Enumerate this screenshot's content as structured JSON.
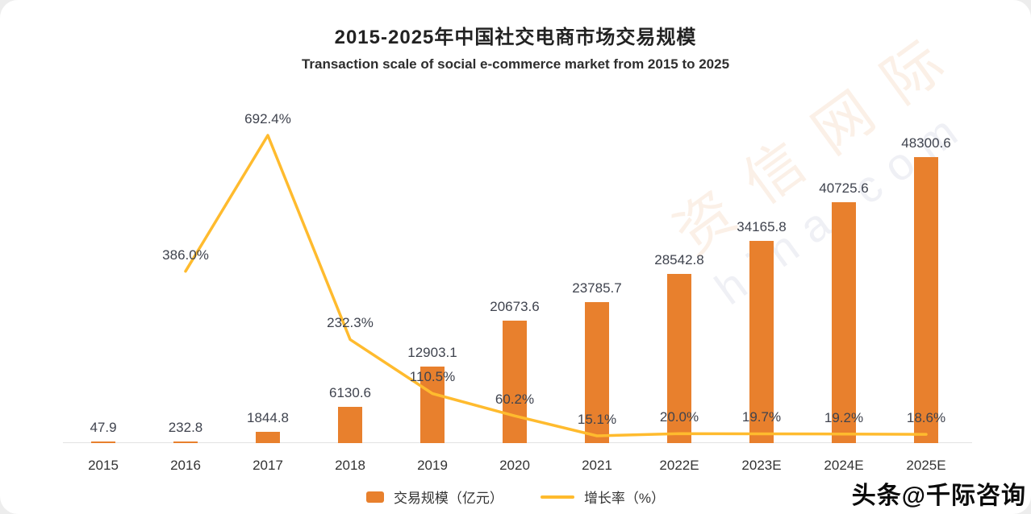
{
  "chart_data": {
    "type": "bar",
    "title": "2015-2025年中国社交电商市场交易规模",
    "subtitle": "Transaction scale of social e-commerce market from 2015 to 2025",
    "categories": [
      "2015",
      "2016",
      "2017",
      "2018",
      "2019",
      "2020",
      "2021",
      "2022E",
      "2023E",
      "2024E",
      "2025E"
    ],
    "series": [
      {
        "name": "交易规模（亿元）",
        "type": "bar",
        "color": "#E8802D",
        "values": [
          47.9,
          232.8,
          1844.8,
          6130.6,
          12903.1,
          20673.6,
          23785.7,
          28542.8,
          34165.8,
          40725.6,
          48300.6
        ],
        "labels": [
          "47.9",
          "232.8",
          "1844.8",
          "6130.6",
          "12903.1",
          "20673.6",
          "23785.7",
          "28542.8",
          "34165.8",
          "40725.6",
          "48300.6"
        ]
      },
      {
        "name": "增长率（%）",
        "type": "line",
        "color": "#FFBB2E",
        "values": [
          null,
          386.0,
          692.4,
          232.3,
          110.5,
          60.2,
          15.1,
          20.0,
          19.7,
          19.2,
          18.6
        ],
        "labels": [
          null,
          "386.0%",
          "692.4%",
          "232.3%",
          "110.5%",
          "60.2%",
          "15.1%",
          "20.0%",
          "19.7%",
          "19.2%",
          "18.6%"
        ]
      }
    ],
    "xlabel": "",
    "ylabel": "",
    "ylim": [
      0,
      48300.6
    ],
    "growth_ylim_percent": [
      0,
      692.4
    ],
    "grid": false,
    "legend_position": "bottom"
  },
  "legend": {
    "bar_label": "交易规模（亿元）",
    "line_label": "增长率（%）"
  },
  "watermark": {
    "cn": "资信网际",
    "en": "hina com"
  },
  "footer": {
    "brand": "头条@千际咨询"
  },
  "colors": {
    "bar": "#E8802D",
    "line": "#FFBB2E",
    "text": "#3f434e"
  }
}
